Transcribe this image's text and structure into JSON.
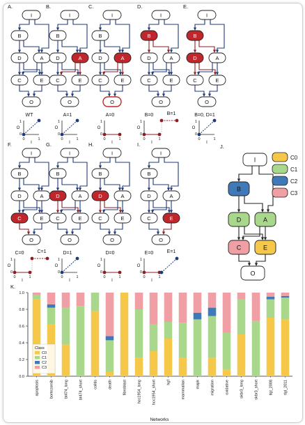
{
  "nodes": {
    "I": "I",
    "B": "B",
    "A": "A",
    "D": "D",
    "C": "C",
    "E": "E",
    "O": "O"
  },
  "panels": [
    {
      "letter": "A.",
      "red": [],
      "caption": "WT",
      "plot": "wt"
    },
    {
      "letter": "B.",
      "red": [
        "A"
      ],
      "caption": "A=1",
      "plot": "diag"
    },
    {
      "letter": "C.",
      "red": [
        "A"
      ],
      "caption": "A=0",
      "plot": "flat0",
      "redO": true
    },
    {
      "letter": "D.",
      "red": [
        "B"
      ],
      "caption": "B=0",
      "caption2": "B=1",
      "plot": "flat0",
      "plot2": "flat1"
    },
    {
      "letter": "E.",
      "red": [
        "B",
        "D"
      ],
      "caption": "B=0, D=1",
      "plot": "diag"
    },
    {
      "letter": "F.",
      "red": [
        "C"
      ],
      "caption": "C=0",
      "caption2": "C=1",
      "plot": "flat0",
      "plot2": "flat1"
    },
    {
      "letter": "G.",
      "red": [
        "D"
      ],
      "caption": "D=1",
      "plot": "diag"
    },
    {
      "letter": "H.",
      "red": [
        "D"
      ],
      "caption": "D=0",
      "plot": "flat0"
    },
    {
      "letter": "I.",
      "red": [
        "E"
      ],
      "caption": "E=0",
      "caption2": "E=1",
      "plot": "flat0",
      "plot2": "diag"
    }
  ],
  "axis": {
    "x0": "0",
    "x1": "1",
    "y0": "0",
    "y1": "1",
    "xlab": "I",
    "ylab": "O"
  },
  "panelJ": {
    "letter": "J.",
    "legend": [
      {
        "label": "C0",
        "color": "#f5c84a"
      },
      {
        "label": "C1",
        "color": "#a9d88c"
      },
      {
        "label": "C2",
        "color": "#3f79b8"
      },
      {
        "label": "C3",
        "color": "#f0a0a4"
      }
    ],
    "nodes": {
      "I": {
        "label": "I",
        "color": "#ffffff"
      },
      "B": {
        "label": "B",
        "color": "#3f79b8"
      },
      "D": {
        "label": "D",
        "color": "#a9d88c"
      },
      "A": {
        "label": "A",
        "color": "#a9d88c"
      },
      "C": {
        "label": "C",
        "color": "#f0a0a4"
      },
      "E": {
        "label": "E",
        "color": "#f5c84a"
      },
      "O": {
        "label": "O",
        "color": "#ffffff"
      }
    }
  },
  "chart_data": {
    "type": "bar",
    "stacked": true,
    "letter": "K.",
    "xlabel": "Networks",
    "ylabel": "",
    "ylim": [
      0,
      1
    ],
    "yticks": [
      "0.0",
      "0.2",
      "0.4",
      "0.6",
      "0.8",
      "1.0"
    ],
    "legend_title": "Class",
    "legend_position": "bottom-left",
    "categories": [
      "apoptosis",
      "bortezomib",
      "bt474_long",
      "bt474_short",
      "colitis",
      "death",
      "fibroblast",
      "hcc1954_long",
      "hcc1954_short",
      "hgf",
      "mammalian",
      "mapk",
      "migration",
      "oxidative",
      "skbr3_long",
      "skbr3_short",
      "tlgl_2008",
      "tlgl_2011"
    ],
    "series": [
      {
        "name": "C0",
        "color": "#f5c84a",
        "values": [
          0.92,
          0.62,
          0.38,
          0.0,
          0.78,
          0.05,
          1.0,
          0.22,
          0.3,
          0.45,
          0.22,
          0.0,
          0.22,
          0.08,
          0.5,
          0.0,
          0.7,
          0.68
        ]
      },
      {
        "name": "C1",
        "color": "#a9d88c",
        "values": [
          0.05,
          0.2,
          0.44,
          0.84,
          0.22,
          0.38,
          0.0,
          0.58,
          0.32,
          0.2,
          0.42,
          0.68,
          0.5,
          0.44,
          0.42,
          0.66,
          0.22,
          0.26
        ]
      },
      {
        "name": "C2",
        "color": "#3f79b8",
        "values": [
          0.0,
          0.04,
          0.0,
          0.0,
          0.0,
          0.05,
          0.0,
          0.0,
          0.0,
          0.0,
          0.0,
          0.08,
          0.1,
          0.0,
          0.0,
          0.0,
          0.03,
          0.02
        ]
      },
      {
        "name": "C3",
        "color": "#f0a0a4",
        "values": [
          0.03,
          0.14,
          0.18,
          0.16,
          0.0,
          0.52,
          0.0,
          0.2,
          0.38,
          0.35,
          0.36,
          0.24,
          0.18,
          0.48,
          0.08,
          0.34,
          0.05,
          0.04
        ]
      }
    ]
  }
}
